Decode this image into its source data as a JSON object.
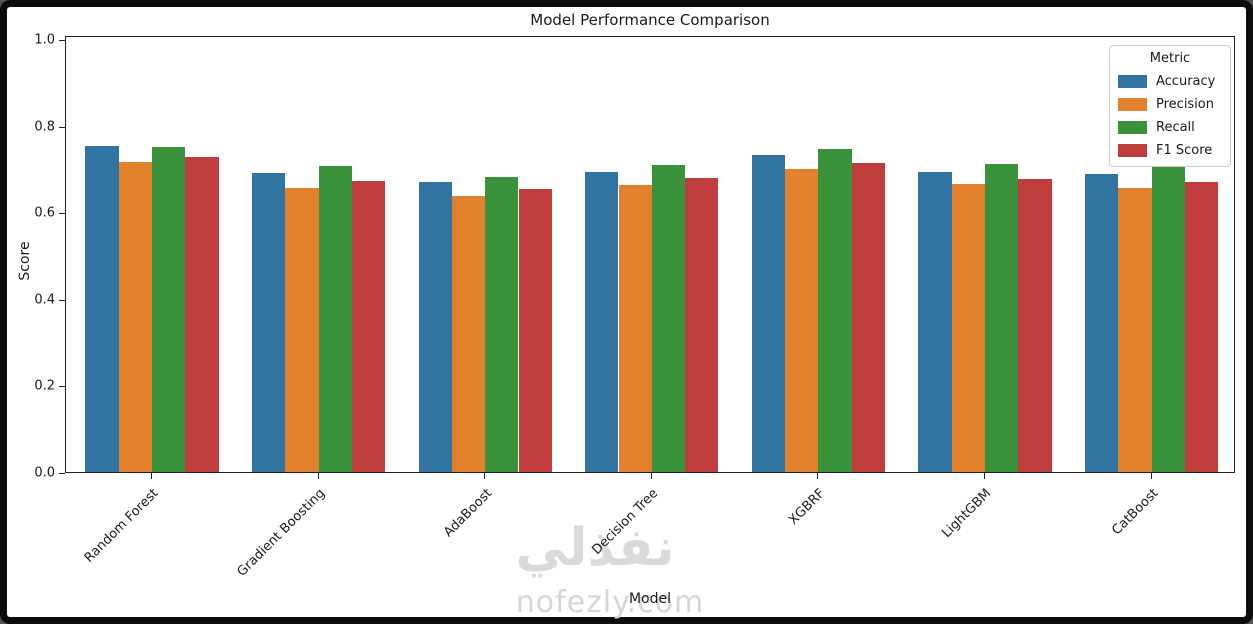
{
  "frame": {
    "border_color": "#0d0d0d",
    "background": "#ffffff"
  },
  "chart_data": {
    "type": "bar",
    "title": "Model Performance Comparison",
    "xlabel": "Model",
    "ylabel": "Score",
    "ylim": [
      0.0,
      1.0
    ],
    "yticks": [
      0.0,
      0.2,
      0.4,
      0.6,
      0.8,
      1.0
    ],
    "grid": false,
    "categories": [
      "Random Forest",
      "Gradient Boosting",
      "AdaBoost",
      "Decision Tree",
      "XGBRF",
      "LightGBM",
      "CatBoost"
    ],
    "series": [
      {
        "name": "Accuracy",
        "color": "#3274a1",
        "values": [
          0.752,
          0.69,
          0.67,
          0.694,
          0.733,
          0.694,
          0.688
        ]
      },
      {
        "name": "Precision",
        "color": "#e1812c",
        "values": [
          0.717,
          0.657,
          0.638,
          0.663,
          0.7,
          0.665,
          0.656
        ]
      },
      {
        "name": "Recall",
        "color": "#3a923a",
        "values": [
          0.75,
          0.707,
          0.682,
          0.709,
          0.745,
          0.711,
          0.705
        ]
      },
      {
        "name": "F1 Score",
        "color": "#c03d3e",
        "values": [
          0.728,
          0.673,
          0.653,
          0.679,
          0.713,
          0.677,
          0.671
        ]
      }
    ],
    "legend": {
      "title": "Metric",
      "position": "upper right"
    }
  },
  "watermark": {
    "arabic": "نفذلي",
    "latin": "nofezly.com",
    "color": "#d9d9d9"
  }
}
